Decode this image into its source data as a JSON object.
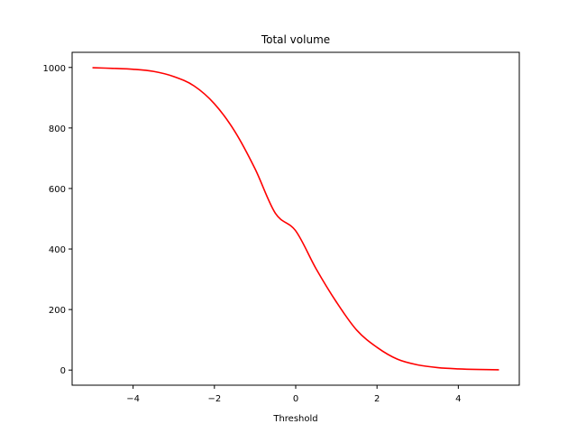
{
  "chart_data": {
    "type": "line",
    "title": "Total volume",
    "xlabel": "Threshold",
    "ylabel": "",
    "xlim": [
      -5.5,
      5.5
    ],
    "ylim": [
      -50,
      1050
    ],
    "grid": false,
    "legend": "none",
    "x_ticks": [
      -4,
      -2,
      0,
      2,
      4
    ],
    "x_tick_labels": [
      "−4",
      "−2",
      "0",
      "2",
      "4"
    ],
    "y_ticks": [
      0,
      200,
      400,
      600,
      800,
      1000
    ],
    "y_tick_labels": [
      "0",
      "200",
      "400",
      "600",
      "800",
      "1000"
    ],
    "series": [
      {
        "color": "#ff0000",
        "x": [
          -5,
          -4.5,
          -4,
          -3.5,
          -3,
          -2.5,
          -2,
          -1.5,
          -1,
          -0.5,
          0,
          0.5,
          1,
          1.5,
          2,
          2.5,
          3,
          3.5,
          4,
          4.5,
          5
        ],
        "y": [
          999,
          997,
          994,
          987,
          970,
          939,
          880,
          789,
          665,
          518,
          460,
          335,
          225,
          132,
          75,
          36,
          17,
          8,
          4,
          2,
          1
        ]
      }
    ]
  }
}
